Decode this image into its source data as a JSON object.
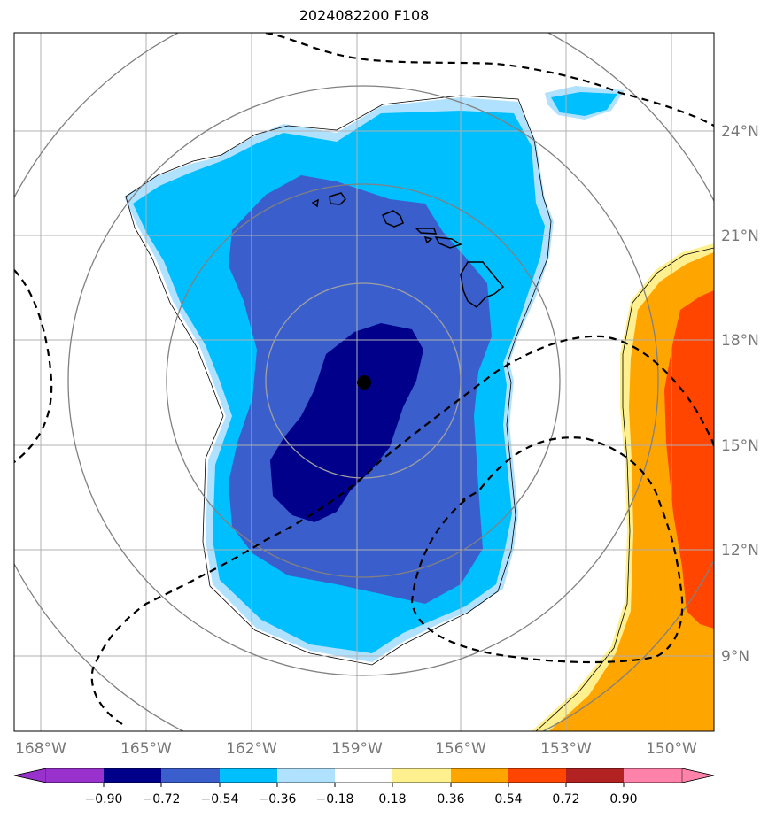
{
  "title": "2024082200 F108",
  "longitude_labels": [
    "168°W",
    "165°W",
    "162°W",
    "159°W",
    "156°W",
    "153°W",
    "150°W"
  ],
  "latitude_labels": [
    "24°N",
    "21°N",
    "18°N",
    "15°N",
    "12°N",
    "9°N"
  ],
  "colorbar": {
    "ticks": [
      "−0.90",
      "−0.72",
      "−0.54",
      "−0.36",
      "−0.18",
      "0.18",
      "0.36",
      "0.54",
      "0.72",
      "0.90"
    ],
    "colors": [
      "#9932cc",
      "#00008b",
      "#3a5fcd",
      "#00bfff",
      "#b0e2ff",
      "#ffffff",
      "#fff08f",
      "#ffa500",
      "#ff4500",
      "#b22222",
      "#ff82ab"
    ]
  },
  "fill_colors": {
    "light_blue": "#b0e2ff",
    "sky_blue": "#00bfff",
    "royal_blue": "#3a5fcd",
    "navy": "#00008b",
    "light_yellow": "#fff08f",
    "orange": "#ffa500",
    "red_orange": "#ff4500"
  },
  "center_marker": "storm-center-dot"
}
